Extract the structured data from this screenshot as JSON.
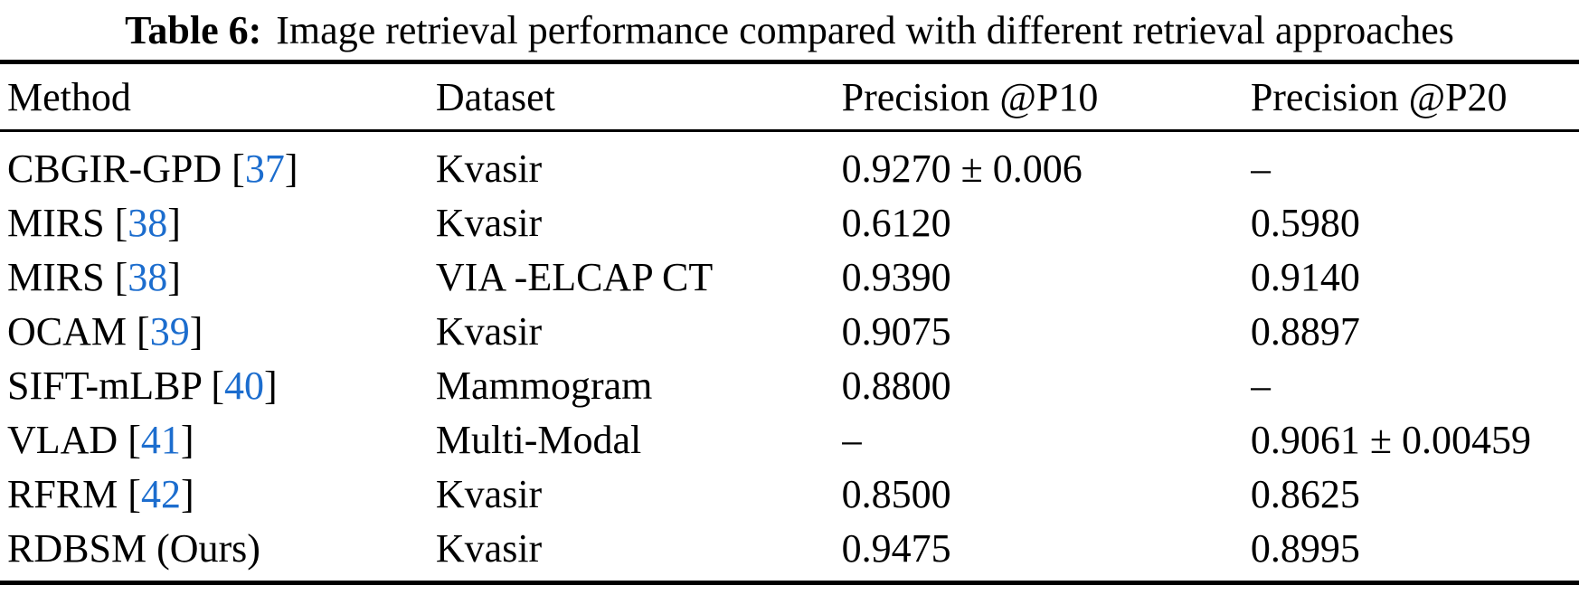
{
  "caption": {
    "label": "Table 6:",
    "text": "Image retrieval performance compared with different retrieval approaches"
  },
  "colors": {
    "citation_blue": "#1c6dce",
    "text": "#000000",
    "rule": "#000000"
  },
  "table": {
    "headers": {
      "method": "Method",
      "dataset": "Dataset",
      "p10": "Precision @P10",
      "p20": "Precision @P20"
    },
    "rows": [
      {
        "method": "CBGIR-GPD",
        "bracket_open": " [",
        "cite": "37",
        "bracket_close": "]",
        "dataset": "Kvasir",
        "p10": "0.9270 ± 0.006",
        "p20": "–"
      },
      {
        "method": "MIRS",
        "bracket_open": " [",
        "cite": "38",
        "bracket_close": "]",
        "dataset": "Kvasir",
        "p10": "0.6120",
        "p20": "0.5980"
      },
      {
        "method": "MIRS",
        "bracket_open": " [",
        "cite": "38",
        "bracket_close": "]",
        "dataset": "VIA -ELCAP CT",
        "p10": "0.9390",
        "p20": "0.9140"
      },
      {
        "method": "OCAM",
        "bracket_open": " [",
        "cite": "39",
        "bracket_close": "]",
        "dataset": "Kvasir",
        "p10": "0.9075",
        "p20": "0.8897"
      },
      {
        "method": "SIFT-mLBP",
        "bracket_open": " [",
        "cite": "40",
        "bracket_close": "]",
        "dataset": "Mammogram",
        "p10": "0.8800",
        "p20": "–"
      },
      {
        "method": "VLAD",
        "bracket_open": " [",
        "cite": "41",
        "bracket_close": "]",
        "dataset": "Multi-Modal",
        "p10": "–",
        "p20": "0.9061 ± 0.00459"
      },
      {
        "method": "RFRM",
        "bracket_open": " [",
        "cite": "42",
        "bracket_close": "]",
        "dataset": "Kvasir",
        "p10": "0.8500",
        "p20": "0.8625"
      },
      {
        "method": "RDBSM (Ours)",
        "bracket_open": "",
        "cite": "",
        "bracket_close": "",
        "dataset": "Kvasir",
        "p10": "0.9475",
        "p20": "0.8995"
      }
    ]
  }
}
